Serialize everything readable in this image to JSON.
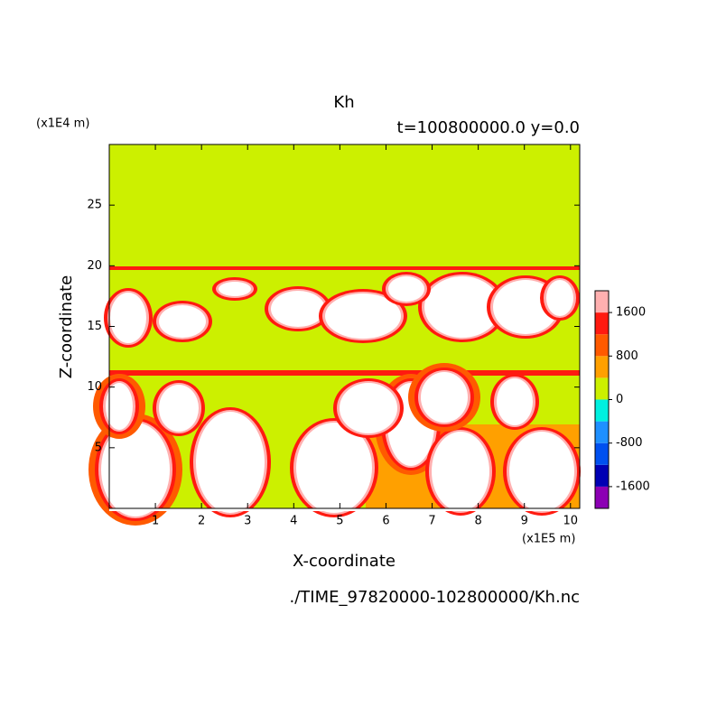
{
  "chart_data": {
    "type": "contour",
    "title": "Kh",
    "subtitle": "t=100800000.0 y=0.0",
    "x_label": "X-coordinate",
    "y_label": "Z-coordinate",
    "x_unit": "(x1E5 m)",
    "y_unit": "(x1E4 m)",
    "footer": "./TIME_97820000-102800000/Kh.nc",
    "xlim": [
      0,
      10.2
    ],
    "xticks": [
      1,
      2,
      3,
      4,
      5,
      6,
      7,
      8,
      9,
      10
    ],
    "ylim": [
      0,
      30
    ],
    "yticks": [
      5,
      10,
      15,
      20,
      25
    ],
    "levels": [
      -2000,
      -1600,
      -1200,
      -800,
      -400,
      0,
      400,
      800,
      1200,
      1600,
      2000
    ],
    "colors": [
      "#8c00b4",
      "#0000b4",
      "#0050f0",
      "#1e90ff",
      "#00f0e0",
      "#ccf000",
      "#ffa000",
      "#ff5a00",
      "#ff1a10",
      "#ffb0b0"
    ],
    "colorbar_ticks": [
      -1600,
      -800,
      0,
      800,
      1600
    ]
  }
}
